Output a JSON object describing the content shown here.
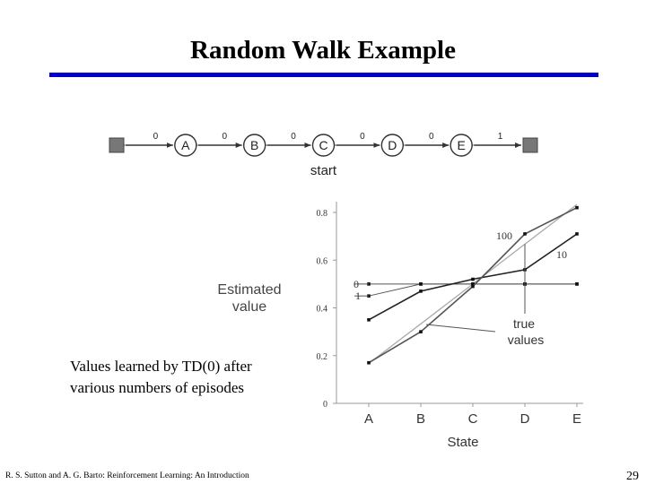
{
  "slide": {
    "title": "Random Walk Example",
    "caption_line1": "Values learned by TD(0) after",
    "caption_line2": "various numbers of episodes",
    "footer": "R. S. Sutton and A. G. Barto: Reinforcement Learning: An Introduction",
    "page_number": "29"
  },
  "random_walk": {
    "states": [
      "A",
      "B",
      "C",
      "D",
      "E"
    ],
    "rewards": [
      "0",
      "0",
      "0",
      "0",
      "0",
      "1"
    ],
    "start_label": "start"
  },
  "chart_data": {
    "type": "line",
    "xlabel": "State",
    "ylabel_line1": "Estimated",
    "ylabel_line2": "value",
    "categories": [
      "A",
      "B",
      "C",
      "D",
      "E"
    ],
    "yticks": [
      "0",
      "0.2",
      "0.4",
      "0.6",
      "0.8"
    ],
    "ylim": [
      0,
      0.85
    ],
    "series": [
      {
        "name": "0",
        "values": [
          0.5,
          0.5,
          0.5,
          0.5,
          0.5
        ]
      },
      {
        "name": "1",
        "values": [
          0.45,
          0.5,
          0.5,
          0.5,
          0.5
        ]
      },
      {
        "name": "10",
        "values": [
          0.35,
          0.47,
          0.52,
          0.56,
          0.71
        ]
      },
      {
        "name": "100",
        "values": [
          0.17,
          0.3,
          0.49,
          0.71,
          0.82
        ]
      },
      {
        "name": "true values",
        "values": [
          0.167,
          0.333,
          0.5,
          0.667,
          0.833
        ]
      }
    ],
    "annotation": {
      "line1": "true",
      "line2": "values"
    }
  }
}
